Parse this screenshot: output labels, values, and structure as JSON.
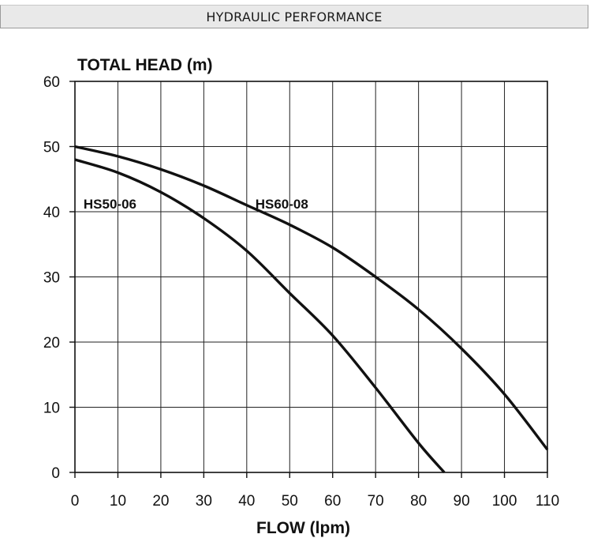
{
  "header": {
    "title": "HYDRAULIC PERFORMANCE"
  },
  "chart_data": {
    "type": "line",
    "title": "",
    "ylabel": "TOTAL HEAD (m)",
    "xlabel": "FLOW (lpm)",
    "xlim": [
      0,
      110
    ],
    "ylim": [
      0,
      60
    ],
    "x_ticks": [
      0,
      10,
      20,
      30,
      40,
      50,
      60,
      70,
      80,
      90,
      100,
      110
    ],
    "y_ticks": [
      0,
      10,
      20,
      30,
      40,
      50,
      60
    ],
    "grid": true,
    "legend": "none",
    "series": [
      {
        "name": "HS50-06",
        "x": [
          0,
          10,
          20,
          30,
          40,
          50,
          60,
          70,
          80,
          86
        ],
        "y": [
          48,
          46,
          43,
          39,
          34,
          27.5,
          21,
          13,
          4.5,
          0
        ]
      },
      {
        "name": "HS60-08",
        "x": [
          0,
          10,
          20,
          30,
          40,
          50,
          60,
          70,
          80,
          90,
          100,
          110
        ],
        "y": [
          50,
          48.5,
          46.5,
          44,
          41,
          38,
          34.5,
          30,
          25,
          19,
          12,
          3.5
        ]
      }
    ]
  }
}
